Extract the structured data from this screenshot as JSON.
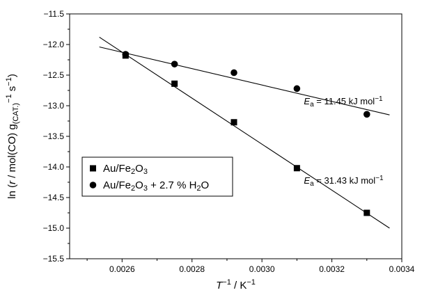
{
  "chart_data": {
    "type": "scatter",
    "title": "",
    "xlabel": {
      "main": "T",
      "sup": "−1",
      "rest": " / K",
      "sup2": "−1"
    },
    "ylabel": {
      "pre": "ln (",
      "r": "r",
      "post": " / mol(CO) g",
      "sub": "(CAT.)",
      "sup1": "−1",
      "s": " s",
      "sup2": "−1",
      "close": ")"
    },
    "xlim": [
      0.00245,
      0.0034
    ],
    "ylim": [
      -15.5,
      -11.5
    ],
    "xticks": [
      0.0026,
      0.0028,
      0.003,
      0.0032,
      0.0034
    ],
    "xtick_labels": [
      "0.0026",
      "0.0028",
      "0.0030",
      "0.0032",
      "0.0034"
    ],
    "yticks": [
      -11.5,
      -12.0,
      -12.5,
      -13.0,
      -13.5,
      -14.0,
      -14.5,
      -15.0,
      -15.5
    ],
    "ytick_labels": [
      "−11.5",
      "−12.0",
      "−12.5",
      "−13.0",
      "−13.5",
      "−14.0",
      "−14.5",
      "−15.0",
      "−15.5"
    ],
    "grid": false,
    "legend_position": "center-left",
    "series": [
      {
        "name": "Au/Fe2O3",
        "legend": {
          "pre": "Au/Fe",
          "sub1": "2",
          "mid": "O",
          "sub2": "3",
          "post": ""
        },
        "marker": "square",
        "color": "#000000",
        "points": [
          {
            "x": 0.00261,
            "y": -12.18
          },
          {
            "x": 0.00275,
            "y": -12.64
          },
          {
            "x": 0.00292,
            "y": -13.27
          },
          {
            "x": 0.0031,
            "y": -14.02
          },
          {
            "x": 0.0033,
            "y": -14.75
          }
        ],
        "fit": {
          "x_start": 0.002535,
          "y_start": -11.88,
          "x_end": 0.003365,
          "y_end": -15.0
        },
        "annotation": {
          "E": "E",
          "sub": "a",
          "text": " = 31.43 kJ mol",
          "sup": "−1",
          "x": 0.00312,
          "y": -14.27
        }
      },
      {
        "name": "Au/Fe2O3 + 2.7 % H2O",
        "legend": {
          "pre": "Au/Fe",
          "sub1": "2",
          "mid": "O",
          "sub2": "3",
          "post": " + 2.7 % H",
          "sub3": "2",
          "end": "O"
        },
        "marker": "circle",
        "color": "#000000",
        "points": [
          {
            "x": 0.00261,
            "y": -12.16
          },
          {
            "x": 0.00275,
            "y": -12.32
          },
          {
            "x": 0.00292,
            "y": -12.46
          },
          {
            "x": 0.0031,
            "y": -12.72
          },
          {
            "x": 0.0033,
            "y": -13.14
          }
        ],
        "fit": {
          "x_start": 0.002535,
          "y_start": -12.04,
          "x_end": 0.003365,
          "y_end": -13.15
        },
        "annotation": {
          "E": "E",
          "sub": "a",
          "text": " = 11.45 kJ mol",
          "sup": "−1",
          "x": 0.00312,
          "y": -12.98
        }
      }
    ]
  }
}
